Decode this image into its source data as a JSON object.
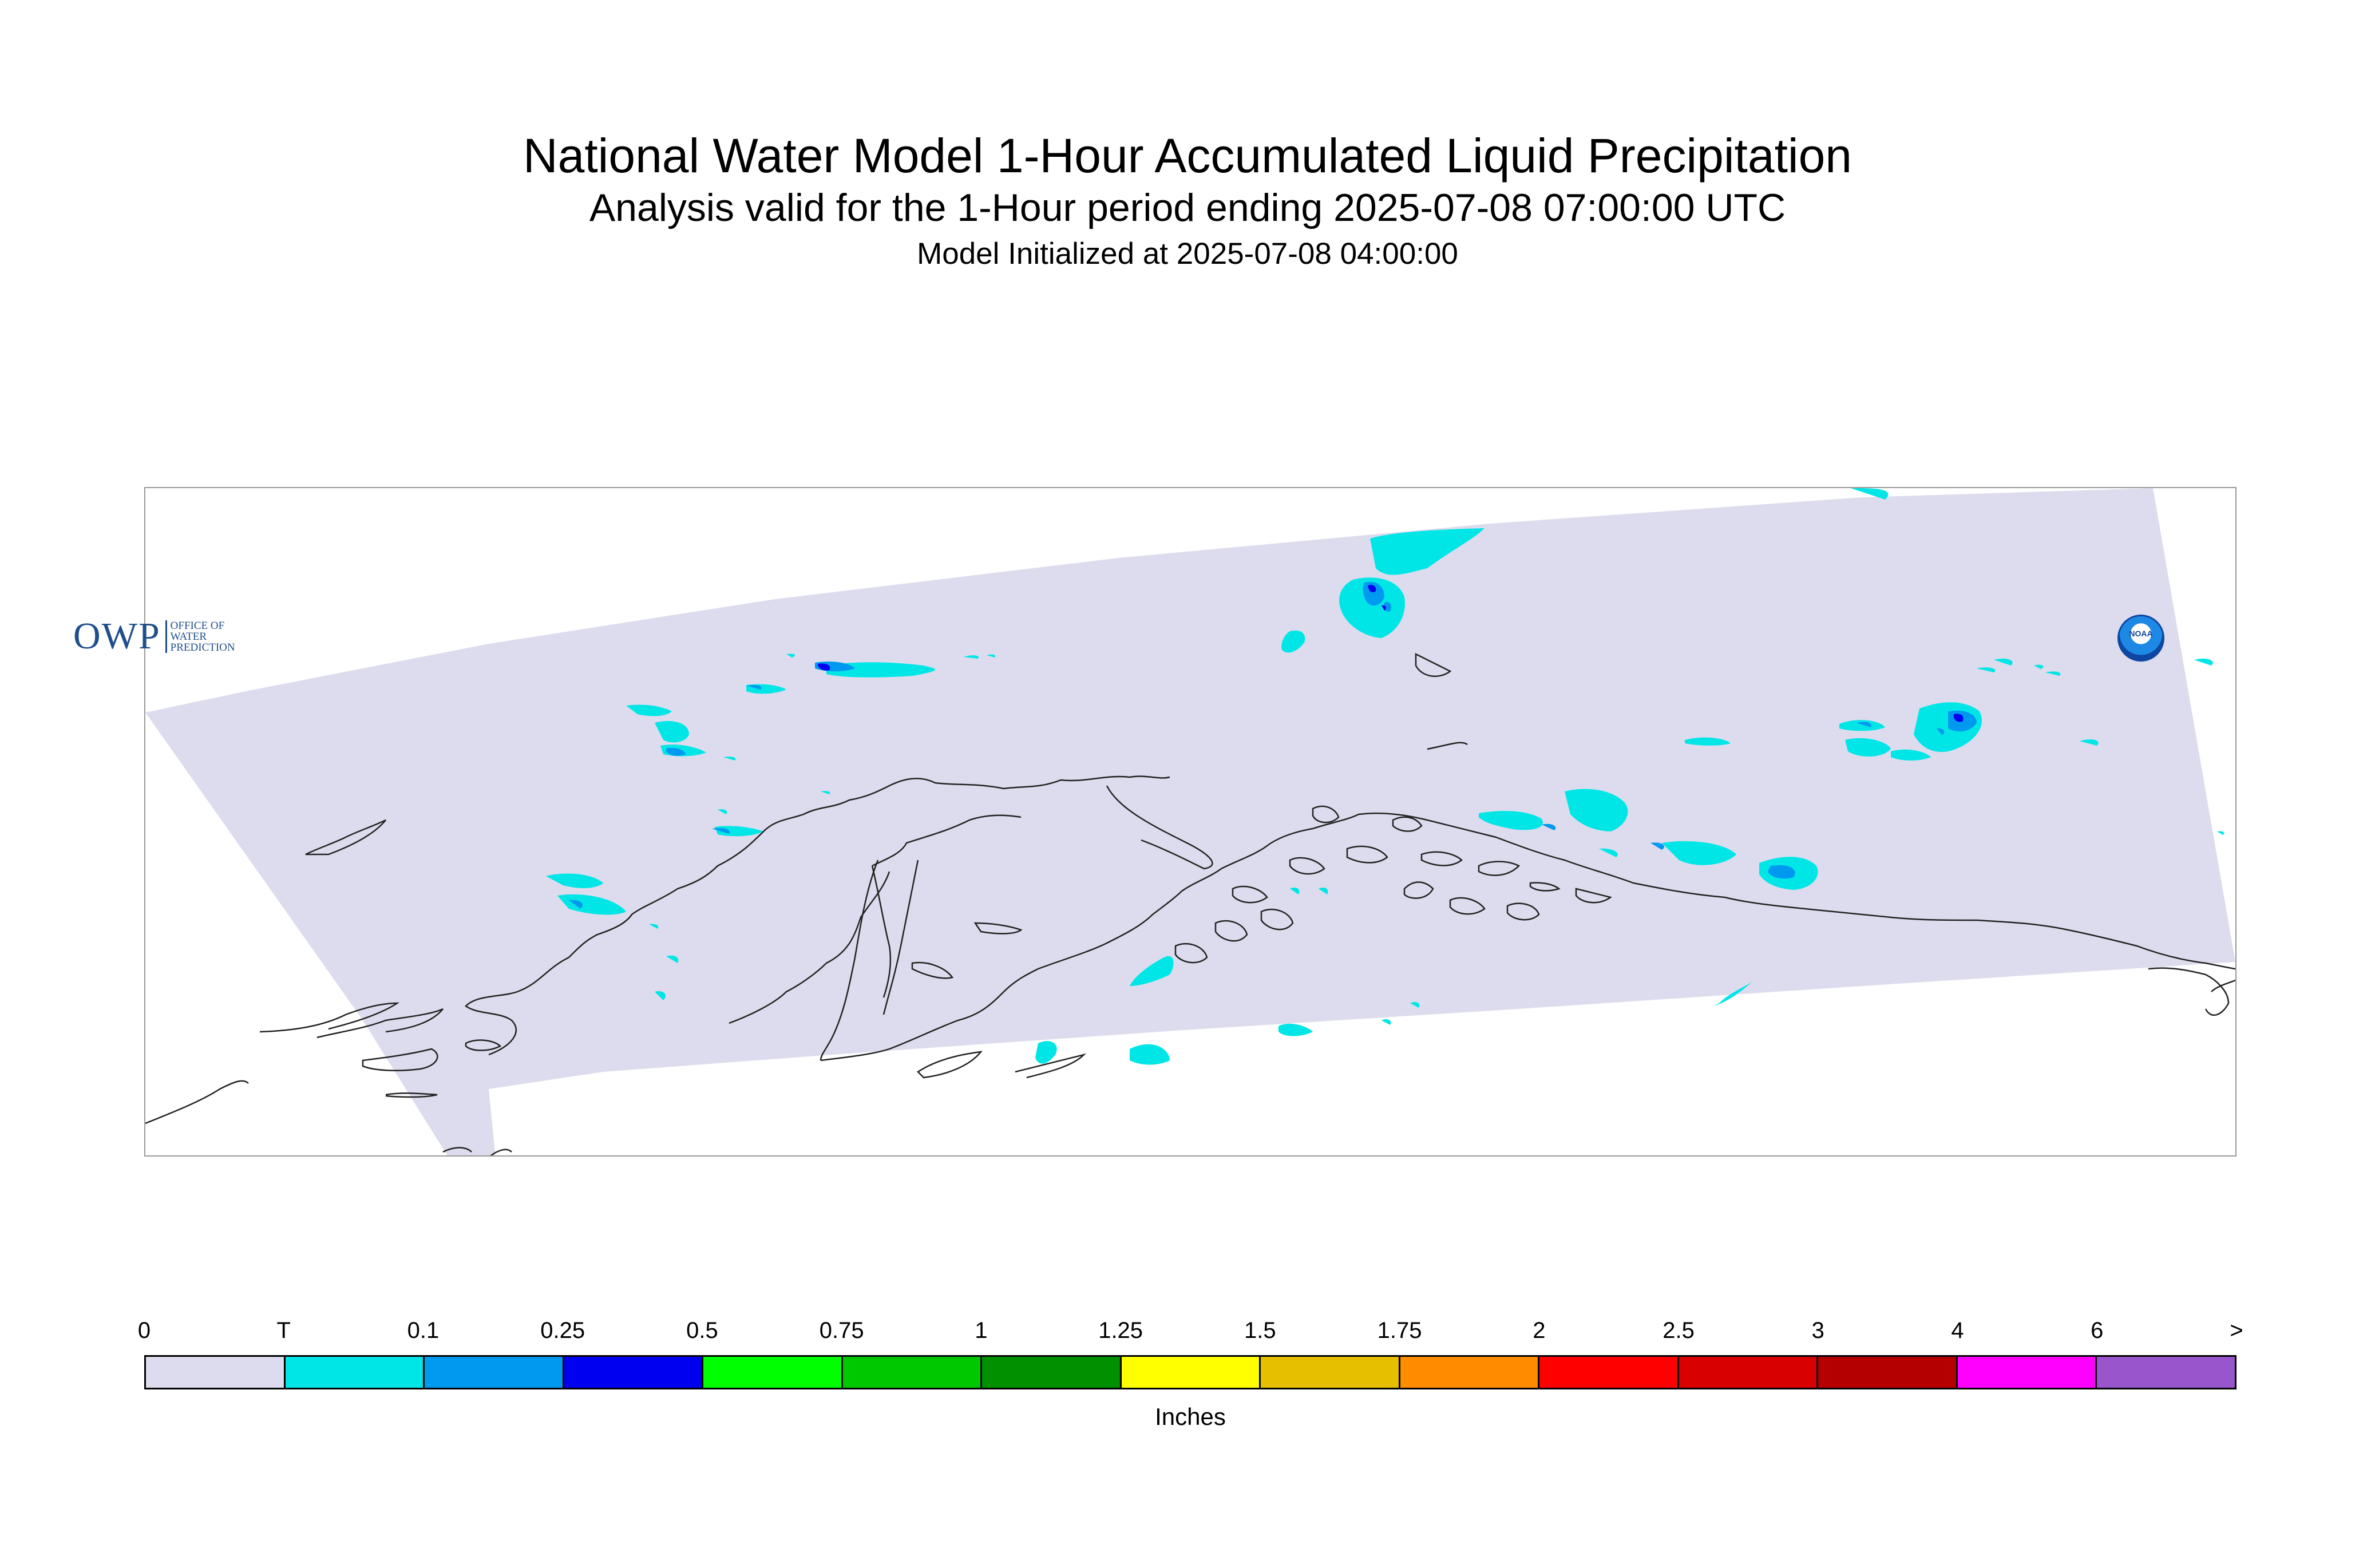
{
  "title": "National Water Model 1-Hour Accumulated Liquid Precipitation",
  "subtitle": "Analysis valid for the 1-Hour period ending 2025-07-08 07:00:00 UTC",
  "init_line": "Model Initialized at 2025-07-08 04:00:00",
  "logo_owp": {
    "main": "OWP",
    "sub": [
      "OFFICE OF",
      "WATER",
      "PREDICTION"
    ]
  },
  "logo_noaa": "NOAA",
  "legend": {
    "units": "Inches",
    "ticks": [
      "0",
      "T",
      "0.1",
      "0.25",
      "0.5",
      "0.75",
      "1",
      "1.25",
      "1.5",
      "1.75",
      "2",
      "2.5",
      "3",
      "4",
      "6",
      ">"
    ],
    "colors": [
      "#dcdcee",
      "#00e6e6",
      "#0099f0",
      "#0000f0",
      "#00ff00",
      "#00c800",
      "#009000",
      "#ffff00",
      "#e6c000",
      "#ff8c00",
      "#ff0000",
      "#d80000",
      "#b40000",
      "#ff00ff",
      "#9955cc"
    ]
  },
  "map": {
    "domain_fill": "#dcdcee",
    "coast_color": "#222222",
    "precip_colors": {
      "trace": "#00e6e6",
      "light": "#0099f0",
      "moderate": "#0000f0"
    }
  }
}
